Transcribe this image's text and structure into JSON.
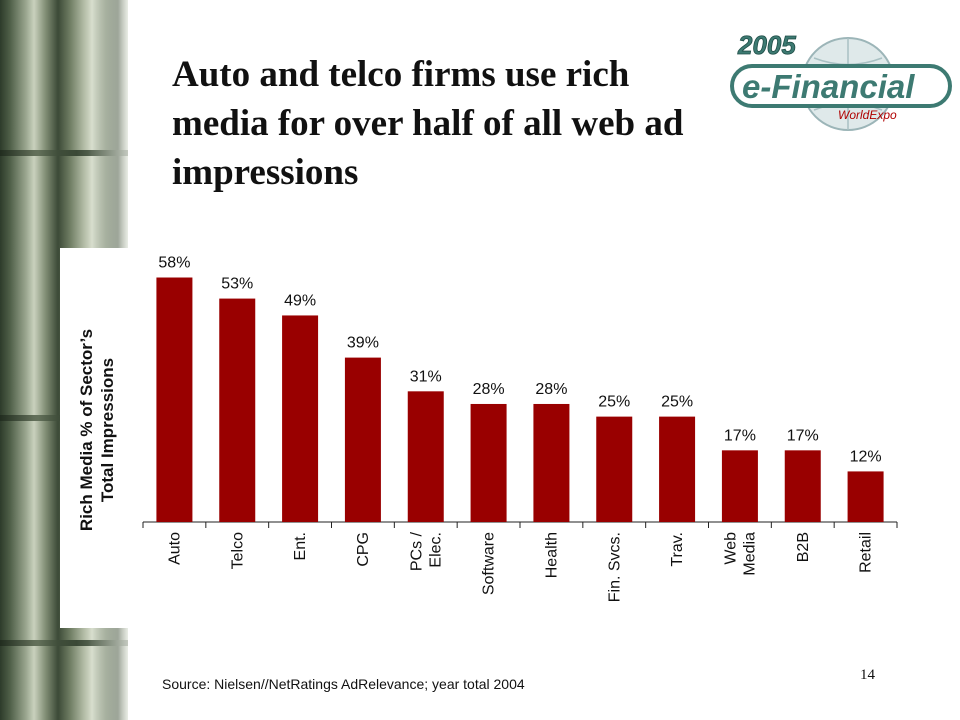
{
  "slide": {
    "title": "Auto and telco firms use rich media for over half of all web ad impressions",
    "source": "Source: Nielsen//NetRatings AdRelevance; year total 2004",
    "page_number": "14"
  },
  "logo": {
    "year": "2005",
    "name": "e-Financial",
    "subtitle": "WorldExpo",
    "color": "#3d7a72"
  },
  "chart_data": {
    "type": "bar",
    "ylabel_lines": [
      "Rich Media % of Sector’s",
      "Total Impressions"
    ],
    "categories": [
      [
        "Auto"
      ],
      [
        "Telco"
      ],
      [
        "Ent."
      ],
      [
        "CPG"
      ],
      [
        "PCs /",
        "Elec."
      ],
      [
        "Software"
      ],
      [
        "Health"
      ],
      [
        "Fin. Svcs."
      ],
      [
        "Trav."
      ],
      [
        "Web",
        "Media"
      ],
      [
        "B2B"
      ],
      [
        "Retail"
      ]
    ],
    "values": [
      58,
      53,
      49,
      39,
      31,
      28,
      28,
      25,
      25,
      17,
      17,
      12
    ],
    "value_labels": [
      "58%",
      "53%",
      "49%",
      "39%",
      "31%",
      "28%",
      "28%",
      "25%",
      "25%",
      "17%",
      "17%",
      "12%"
    ],
    "ylim": [
      0,
      65
    ],
    "bar_color": "#990000",
    "grid": false
  }
}
